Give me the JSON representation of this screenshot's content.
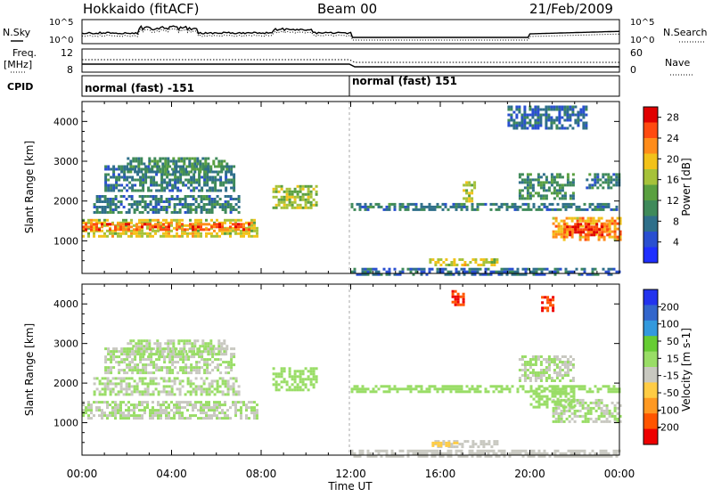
{
  "header": {
    "station": "Hokkaido (fitACF)",
    "beam": "Beam 00",
    "date": "21/Feb/2009"
  },
  "strip_labels": {
    "nsky": "N.Sky",
    "nsearch": "N.Search",
    "freq_top": "Freq.",
    "freq_unit": "[MHz]",
    "nave": "Nave",
    "cpid": "CPID",
    "noise_tick_hi": "10^5",
    "noise_tick_lo": "10^0",
    "freq_tick_hi": "12",
    "freq_tick_lo": "8",
    "nave_tick_hi": "60",
    "nave_tick_lo": "0"
  },
  "cpid_segments": [
    {
      "start": 0.0,
      "label": "normal (fast) -151"
    },
    {
      "start": 12.0,
      "label": "normal (fast) 151"
    }
  ],
  "colors": {
    "power_scale": [
      "#1f2fff",
      "#2a4fd0",
      "#2f6f8a",
      "#3f8a5a",
      "#5aa040",
      "#a6c23a",
      "#f2c21a",
      "#ff8c1a",
      "#ff4a10",
      "#e00000"
    ],
    "velocity_scale": [
      "#2233ee",
      "#3366cc",
      "#3399dd",
      "#66cc33",
      "#99dd66",
      "#c8c8c0",
      "#ffcc44",
      "#ff9922",
      "#ff5500",
      "#ee0000"
    ]
  },
  "chart_data": [
    {
      "type": "heatmap",
      "title": "",
      "xlabel": "Time UT",
      "ylabel": "Slant Range [km]",
      "x_ticks": [
        "00:00",
        "04:00",
        "08:00",
        "12:00",
        "16:00",
        "20:00",
        "00:00"
      ],
      "y_ticks": [
        "1000",
        "2000",
        "3000",
        "4000"
      ],
      "xlim": [
        0,
        24
      ],
      "ylim": [
        180,
        4500
      ],
      "colorbar_label": "Power [dB]",
      "colorbar_ticks": [
        "4",
        "8",
        "12",
        "16",
        "20",
        "24",
        "28"
      ],
      "colorbar_range": [
        0,
        30
      ],
      "regions": [
        {
          "t": [
            0.0,
            7.8
          ],
          "r": [
            1100,
            1550
          ],
          "level": 18
        },
        {
          "t": [
            0.0,
            7.5
          ],
          "r": [
            1250,
            1450
          ],
          "level": 26
        },
        {
          "t": [
            0.5,
            7.0
          ],
          "r": [
            1700,
            2150
          ],
          "level": 8
        },
        {
          "t": [
            1.0,
            6.8
          ],
          "r": [
            2250,
            2900
          ],
          "level": 8
        },
        {
          "t": [
            2.0,
            6.5
          ],
          "r": [
            2700,
            3100
          ],
          "level": 10
        },
        {
          "t": [
            8.5,
            10.5
          ],
          "r": [
            1800,
            2400
          ],
          "level": 16
        },
        {
          "t": [
            12.0,
            24.0
          ],
          "r": [
            1750,
            1950
          ],
          "level": 8
        },
        {
          "t": [
            15.5,
            18.5
          ],
          "r": [
            380,
            560
          ],
          "level": 18
        },
        {
          "t": [
            17.0,
            17.5
          ],
          "r": [
            2000,
            2500
          ],
          "level": 16
        },
        {
          "t": [
            19.5,
            22.0
          ],
          "r": [
            2050,
            2700
          ],
          "level": 10
        },
        {
          "t": [
            21.0,
            24.0
          ],
          "r": [
            1050,
            1600
          ],
          "level": 22
        },
        {
          "t": [
            21.5,
            23.5
          ],
          "r": [
            1150,
            1450
          ],
          "level": 27
        },
        {
          "t": [
            22.5,
            24.0
          ],
          "r": [
            2300,
            2700
          ],
          "level": 8
        },
        {
          "t": [
            19.0,
            22.5
          ],
          "r": [
            3800,
            4400
          ],
          "level": 6
        },
        {
          "t": [
            12.0,
            24.0
          ],
          "r": [
            180,
            320
          ],
          "level": 6
        }
      ]
    },
    {
      "type": "heatmap",
      "title": "",
      "xlabel": "Time UT",
      "ylabel": "Slant Range [km]",
      "x_ticks": [
        "00:00",
        "04:00",
        "08:00",
        "12:00",
        "16:00",
        "20:00",
        "00:00"
      ],
      "y_ticks": [
        "1000",
        "2000",
        "3000",
        "4000"
      ],
      "xlim": [
        0,
        24
      ],
      "ylim": [
        180,
        4500
      ],
      "colorbar_label": "Velocity [m s-1]",
      "colorbar_ticks": [
        "200",
        "100",
        "50",
        "15",
        "-15",
        "-50",
        "-100",
        "-200"
      ],
      "colorbar_range": [
        -250,
        250
      ],
      "regions": [
        {
          "t": [
            0.0,
            7.8
          ],
          "r": [
            1100,
            1550
          ],
          "vel": 0
        },
        {
          "t": [
            0.5,
            7.0
          ],
          "r": [
            1700,
            2150
          ],
          "vel": 0
        },
        {
          "t": [
            1.0,
            6.8
          ],
          "r": [
            2250,
            2900
          ],
          "vel": 0
        },
        {
          "t": [
            2.0,
            6.5
          ],
          "r": [
            2700,
            3100
          ],
          "vel": 0
        },
        {
          "t": [
            8.5,
            10.5
          ],
          "r": [
            1800,
            2400
          ],
          "vel": 20
        },
        {
          "t": [
            12.0,
            24.0
          ],
          "r": [
            1750,
            1950
          ],
          "vel": 25
        },
        {
          "t": [
            15.5,
            18.5
          ],
          "r": [
            380,
            560
          ],
          "vel": -30
        },
        {
          "t": [
            15.5,
            16.8
          ],
          "r": [
            430,
            520
          ],
          "vel": -80
        },
        {
          "t": [
            19.5,
            22.0
          ],
          "r": [
            2050,
            2700
          ],
          "vel": 0
        },
        {
          "t": [
            21.0,
            24.0
          ],
          "r": [
            1050,
            1600
          ],
          "vel": 0
        },
        {
          "t": [
            20.0,
            22.0
          ],
          "r": [
            1400,
            1900
          ],
          "vel": 40
        },
        {
          "t": [
            16.5,
            17.0
          ],
          "r": [
            3950,
            4350
          ],
          "vel": -220
        },
        {
          "t": [
            20.5,
            21.0
          ],
          "r": [
            3850,
            4200
          ],
          "vel": -220
        },
        {
          "t": [
            12.0,
            24.0
          ],
          "r": [
            180,
            320
          ],
          "vel": -40
        }
      ]
    }
  ]
}
